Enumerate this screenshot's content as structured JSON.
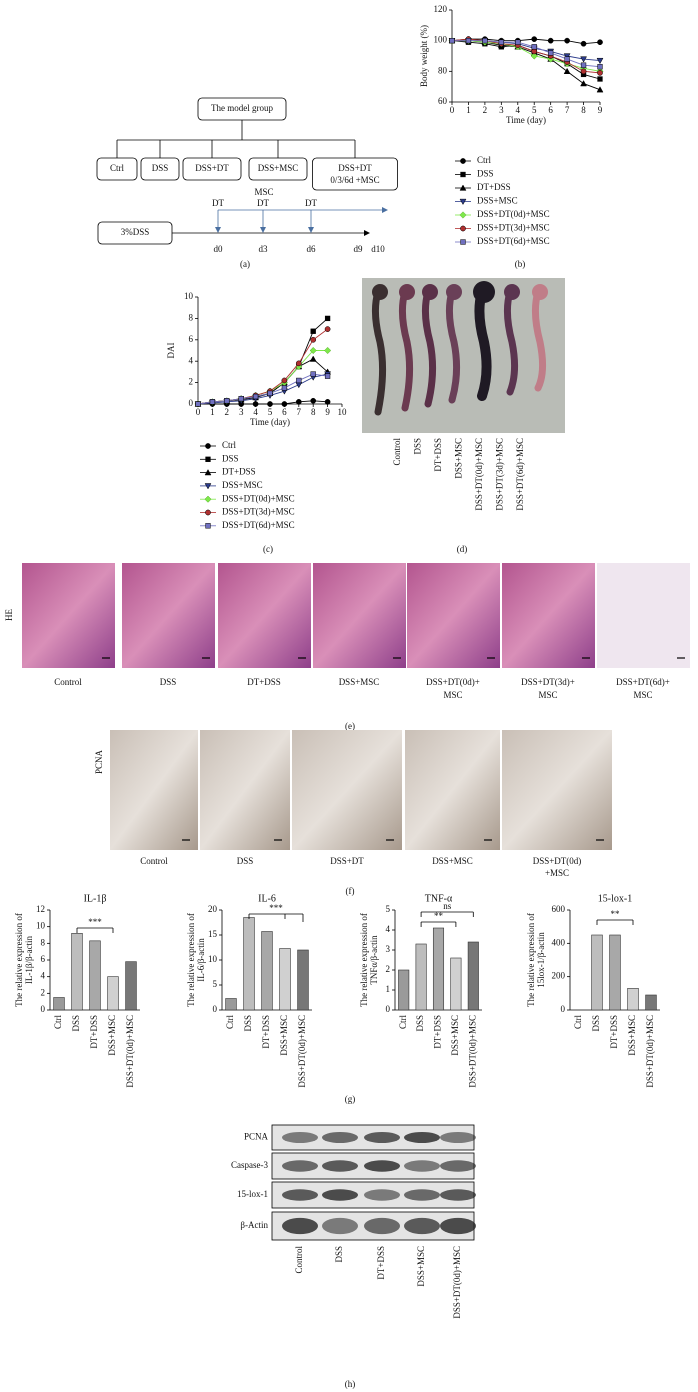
{
  "panel_labels": [
    "(a)",
    "(b)",
    "(c)",
    "(d)",
    "(e)",
    "(f)",
    "(g)",
    "(h)"
  ],
  "diagram": {
    "title": "The model group",
    "groups": [
      [
        "Ctrl"
      ],
      [
        "DSS"
      ],
      [
        "DSS+DT"
      ],
      [
        "DSS+MSC"
      ],
      [
        "DSS+DT",
        "0/3/6d +MSC"
      ]
    ],
    "msc": "MSC",
    "dt": [
      "DT",
      "DT",
      "DT"
    ],
    "dss": "3%DSS",
    "days": [
      "d0",
      "d3",
      "d6",
      "d9",
      "d10"
    ]
  },
  "chart_data": [
    {
      "type": "line",
      "ylabel": "Body weight (%)",
      "xlabel": "Time (day)",
      "x": [
        0,
        1,
        2,
        3,
        4,
        5,
        6,
        7,
        8,
        9
      ],
      "xlim": [
        0,
        9
      ],
      "xticks": [
        0,
        1,
        2,
        3,
        4,
        5,
        6,
        7,
        8,
        9
      ],
      "ylim": [
        60,
        120
      ],
      "yticks": [
        60,
        80,
        100,
        120
      ],
      "series": [
        {
          "name": "Ctrl",
          "color": "#000000",
          "marker": "circle",
          "values": [
            100,
            101,
            101,
            100,
            100,
            101,
            100,
            100,
            98,
            99
          ]
        },
        {
          "name": "DSS",
          "color": "#000000",
          "marker": "square",
          "values": [
            100,
            99,
            98,
            96,
            97,
            93,
            90,
            85,
            78,
            75
          ]
        },
        {
          "name": "DT+DSS",
          "color": "#000000",
          "marker": "triangle",
          "values": [
            100,
            100,
            99,
            97,
            96,
            92,
            88,
            80,
            72,
            68
          ]
        },
        {
          "name": "DSS+MSC",
          "color": "#2a3a8a",
          "marker": "triangle-down",
          "values": [
            100,
            100,
            100,
            99,
            98,
            95,
            93,
            90,
            88,
            87
          ]
        },
        {
          "name": "DSS+DT(0d)+MSC",
          "color": "#7ee84a",
          "marker": "diamond",
          "values": [
            100,
            100,
            99,
            98,
            96,
            90,
            88,
            85,
            82,
            80
          ]
        },
        {
          "name": "DSS+DT(3d)+MSC",
          "color": "#b03030",
          "marker": "circle",
          "values": [
            100,
            101,
            100,
            98,
            97,
            93,
            90,
            86,
            80,
            79
          ]
        },
        {
          "name": "DSS+DT(6d)+MSC",
          "color": "#7070c0",
          "marker": "square",
          "values": [
            100,
            100,
            100,
            99,
            99,
            96,
            92,
            88,
            84,
            83
          ]
        }
      ]
    },
    {
      "type": "line",
      "ylabel": "DAI",
      "xlabel": "Time (day)",
      "x": [
        0,
        1,
        2,
        3,
        4,
        5,
        6,
        7,
        8,
        9
      ],
      "xlim": [
        0,
        10
      ],
      "xticks": [
        0,
        1,
        2,
        3,
        4,
        5,
        6,
        7,
        8,
        9,
        10
      ],
      "ylim": [
        0,
        10
      ],
      "yticks": [
        0,
        2,
        4,
        6,
        8,
        10
      ],
      "series": [
        {
          "name": "Ctrl",
          "color": "#000000",
          "marker": "circle",
          "values": [
            0,
            0,
            0,
            0,
            0,
            0,
            0,
            0.2,
            0.3,
            0.2
          ]
        },
        {
          "name": "DSS",
          "color": "#000000",
          "marker": "square",
          "values": [
            0,
            0.2,
            0.3,
            0.5,
            0.7,
            1,
            2,
            3.5,
            6.8,
            8
          ]
        },
        {
          "name": "DT+DSS",
          "color": "#000000",
          "marker": "triangle",
          "values": [
            0,
            0.2,
            0.3,
            0.4,
            0.6,
            1,
            2,
            3.5,
            4.2,
            3
          ]
        },
        {
          "name": "DSS+MSC",
          "color": "#2a3a8a",
          "marker": "triangle-down",
          "values": [
            0,
            0.1,
            0.2,
            0.3,
            0.5,
            0.8,
            1.2,
            1.8,
            2.5,
            2.8
          ]
        },
        {
          "name": "DSS+DT(0d)+MSC",
          "color": "#7ee84a",
          "marker": "diamond",
          "values": [
            0,
            0.2,
            0.3,
            0.5,
            0.8,
            1.2,
            2,
            3.5,
            5,
            5
          ]
        },
        {
          "name": "DSS+DT(3d)+MSC",
          "color": "#b03030",
          "marker": "circle",
          "values": [
            0,
            0.2,
            0.3,
            0.5,
            0.8,
            1.2,
            2.2,
            3.8,
            6,
            7
          ]
        },
        {
          "name": "DSS+DT(6d)+MSC",
          "color": "#7070c0",
          "marker": "square",
          "values": [
            0,
            0.2,
            0.3,
            0.5,
            0.7,
            1,
            1.5,
            2.2,
            2.8,
            2.6
          ]
        }
      ]
    },
    {
      "type": "bar",
      "title": "IL-1β",
      "ylabel": [
        "The relative expression of",
        "IL-1β/β-actin"
      ],
      "categories": [
        "Ctrl",
        "DSS",
        "DT+DSS",
        "DSS+MSC",
        "DSS+DT(0d)+MSC"
      ],
      "values": [
        1.5,
        9.2,
        8.3,
        4,
        5.8
      ],
      "colors": [
        "#9a9a9a",
        "#bdbdbd",
        "#a8a8a8",
        "#d0d0d0",
        "#777777"
      ],
      "ylim": [
        0,
        12
      ],
      "yticks": [
        0,
        2,
        4,
        6,
        8,
        10,
        12
      ],
      "annotations": [
        "***"
      ]
    },
    {
      "type": "bar",
      "title": "IL-6",
      "ylabel": [
        "The relative expression of",
        "IL-6/β-actin"
      ],
      "categories": [
        "Ctrl",
        "DSS",
        "DT+DSS",
        "DSS+MSC",
        "DSS+DT(0d)+MSC"
      ],
      "values": [
        2.3,
        18.5,
        15.7,
        12.3,
        12
      ],
      "colors": [
        "#9a9a9a",
        "#bdbdbd",
        "#a8a8a8",
        "#d0d0d0",
        "#777777"
      ],
      "ylim": [
        0,
        20
      ],
      "yticks": [
        0,
        5,
        10,
        15,
        20
      ],
      "annotations": [
        "***"
      ]
    },
    {
      "type": "bar",
      "title": "TNF-α",
      "ylabel": [
        "The relative expression of",
        "TNFα/β-actin"
      ],
      "categories": [
        "Ctrl",
        "DSS",
        "DT+DSS",
        "DSS+MSC",
        "DSS+DT(0d)+MSC"
      ],
      "values": [
        2,
        3.3,
        4.1,
        2.6,
        3.4
      ],
      "colors": [
        "#9a9a9a",
        "#bdbdbd",
        "#a8a8a8",
        "#d0d0d0",
        "#777777"
      ],
      "ylim": [
        0,
        5
      ],
      "yticks": [
        0,
        1,
        2,
        3,
        4,
        5
      ],
      "annotations": [
        "**",
        "ns"
      ]
    },
    {
      "type": "bar",
      "title": "15-lox-1",
      "ylabel": [
        "The relative expression of",
        "15lox-1/β-actin"
      ],
      "categories": [
        "Ctrl",
        "DSS",
        "DT+DSS",
        "DSS+MSC",
        "DSS+DT(0d)+MSC"
      ],
      "values": [
        0,
        450,
        450,
        130,
        90
      ],
      "colors": [
        "#9a9a9a",
        "#bdbdbd",
        "#a8a8a8",
        "#d0d0d0",
        "#777777"
      ],
      "ylim": [
        0,
        600
      ],
      "yticks": [
        0,
        200,
        400,
        600
      ],
      "annotations": [
        "**"
      ]
    }
  ],
  "photo": {
    "labels": [
      "Control",
      "DSS",
      "DT+DSS",
      "DSS+MSC",
      "DSS+DT(0d)+MSC",
      "DSS+DT(3d)+MSC",
      "DSS+DT(6d)+MSC"
    ]
  },
  "he": {
    "stain": "HE",
    "labels": [
      [
        "Control"
      ],
      [
        "DSS"
      ],
      [
        "DT+DSS"
      ],
      [
        "DSS+MSC"
      ],
      [
        "DSS+DT(0d)+",
        "MSC"
      ],
      [
        "DSS+DT(3d)+",
        "MSC"
      ],
      [
        "DSS+DT(6d)+",
        "MSC"
      ]
    ]
  },
  "pcna": {
    "stain": "PCNA",
    "labels": [
      [
        "Control"
      ],
      [
        "DSS"
      ],
      [
        "DSS+DT"
      ],
      [
        "DSS+MSC"
      ],
      [
        "DSS+DT(0d)",
        "+MSC"
      ]
    ]
  },
  "blot": {
    "rows": [
      "PCNA",
      "Caspase-3",
      "15-lox-1",
      "β-Actin"
    ],
    "columns": [
      "Control",
      "DSS",
      "DT+DSS",
      "DSS+MSC",
      "DSS+DT(0d)+MSC"
    ]
  }
}
